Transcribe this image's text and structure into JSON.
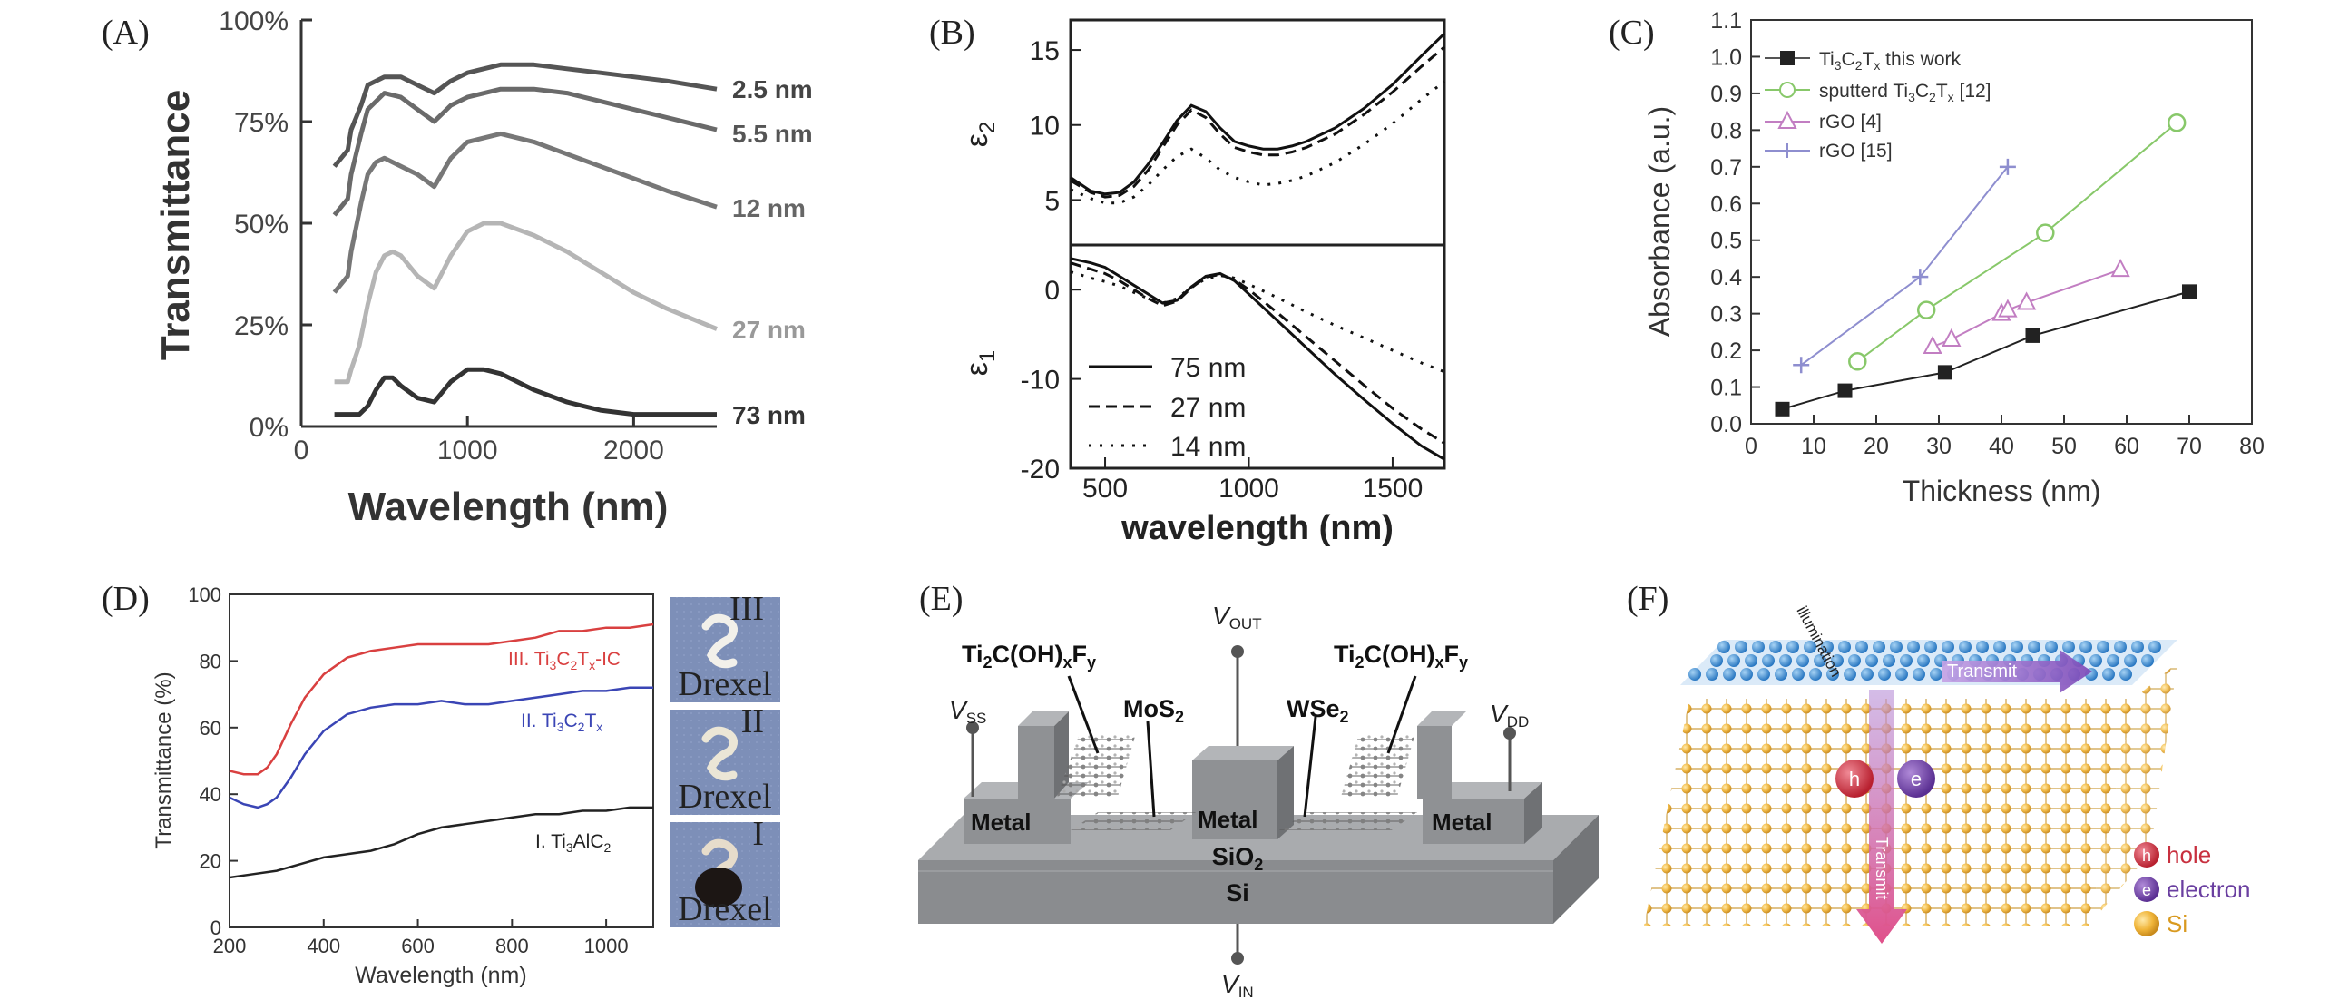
{
  "panels": {
    "A": {
      "letter": "(A)"
    },
    "B": {
      "letter": "(B)"
    },
    "C": {
      "letter": "(C)"
    },
    "D": {
      "letter": "(D)"
    },
    "E": {
      "letter": "(E)"
    },
    "F": {
      "letter": "(F)"
    }
  },
  "chart_data": [
    {
      "panel": "A",
      "type": "line",
      "xlabel": "Wavelength (nm)",
      "ylabel": "Transmittance",
      "xlim": [
        0,
        2500
      ],
      "ylim": [
        0,
        100
      ],
      "xticks": [
        "0",
        "1000",
        "2000"
      ],
      "yticks": [
        "0%",
        "25%",
        "50%",
        "75%",
        "100%"
      ],
      "series": [
        {
          "name": "2.5 nm",
          "color": "#555555",
          "x": [
            200,
            280,
            300,
            360,
            400,
            500,
            600,
            700,
            800,
            900,
            1000,
            1200,
            1400,
            1600,
            1800,
            2000,
            2200,
            2500
          ],
          "y": [
            64,
            68,
            73,
            79,
            84,
            86,
            86,
            84,
            82,
            85,
            87,
            89,
            89,
            88,
            87,
            86,
            85,
            83
          ]
        },
        {
          "name": "5.5 nm",
          "color": "#6a6a6a",
          "x": [
            200,
            280,
            300,
            360,
            400,
            500,
            600,
            700,
            800,
            900,
            1000,
            1200,
            1400,
            1600,
            1800,
            2000,
            2200,
            2500
          ],
          "y": [
            52,
            56,
            62,
            72,
            78,
            82,
            81,
            78,
            75,
            79,
            81,
            83,
            83,
            82,
            80,
            78,
            76,
            73
          ]
        },
        {
          "name": "12 nm",
          "color": "#777777",
          "x": [
            200,
            280,
            300,
            360,
            400,
            450,
            500,
            600,
            700,
            800,
            900,
            1000,
            1200,
            1400,
            1600,
            1800,
            2000,
            2200,
            2500
          ],
          "y": [
            33,
            37,
            43,
            55,
            62,
            65,
            66,
            64,
            62,
            59,
            66,
            70,
            72,
            70,
            67,
            64,
            61,
            58,
            54
          ]
        },
        {
          "name": "27 nm",
          "color": "#b5b5b5",
          "x": [
            200,
            280,
            300,
            350,
            400,
            450,
            500,
            550,
            600,
            700,
            800,
            900,
            1000,
            1100,
            1200,
            1400,
            1600,
            1800,
            2000,
            2200,
            2500
          ],
          "y": [
            11,
            11,
            14,
            20,
            30,
            38,
            42,
            43,
            42,
            37,
            34,
            42,
            48,
            50,
            50,
            47,
            43,
            38,
            33,
            29,
            24
          ]
        },
        {
          "name": "73 nm",
          "color": "#333333",
          "x": [
            200,
            300,
            350,
            400,
            450,
            500,
            550,
            600,
            700,
            800,
            900,
            1000,
            1100,
            1200,
            1400,
            1600,
            1800,
            2000,
            2200,
            2500
          ],
          "y": [
            3,
            3,
            3,
            5,
            9,
            12,
            12,
            10,
            7,
            6,
            11,
            14,
            14,
            13,
            9,
            6,
            4,
            3,
            3,
            3
          ]
        }
      ]
    },
    {
      "panel": "B-top",
      "type": "line",
      "ylabel": "ε2",
      "xlim": [
        380,
        1680
      ],
      "ylim": [
        2,
        17
      ],
      "yticks": [
        "5",
        "10",
        "15"
      ],
      "series": [
        {
          "name": "75 nm",
          "dash": "solid",
          "x": [
            380,
            450,
            500,
            550,
            600,
            650,
            700,
            750,
            800,
            850,
            900,
            950,
            1000,
            1050,
            1100,
            1150,
            1200,
            1300,
            1400,
            1500,
            1600,
            1680
          ],
          "y": [
            6.5,
            5.6,
            5.4,
            5.5,
            6.2,
            7.4,
            8.8,
            10.3,
            11.3,
            10.9,
            9.8,
            8.9,
            8.6,
            8.4,
            8.4,
            8.6,
            8.9,
            9.8,
            11.1,
            12.7,
            14.6,
            16.1
          ]
        },
        {
          "name": "27 nm",
          "dash": "dashed",
          "x": [
            380,
            450,
            500,
            550,
            600,
            650,
            700,
            750,
            800,
            850,
            900,
            950,
            1000,
            1050,
            1100,
            1150,
            1200,
            1300,
            1400,
            1500,
            1600,
            1680
          ],
          "y": [
            6.3,
            5.5,
            5.2,
            5.3,
            5.9,
            7.0,
            8.5,
            10.0,
            11.0,
            10.5,
            9.4,
            8.5,
            8.2,
            8.0,
            8.0,
            8.2,
            8.5,
            9.4,
            10.7,
            12.2,
            13.9,
            15.2
          ]
        },
        {
          "name": "14 nm",
          "dash": "dotted",
          "x": [
            380,
            450,
            500,
            550,
            600,
            650,
            700,
            750,
            800,
            850,
            900,
            950,
            1000,
            1050,
            1100,
            1150,
            1200,
            1300,
            1400,
            1500,
            1600,
            1680
          ],
          "y": [
            5.7,
            5.1,
            4.8,
            4.8,
            5.2,
            6.0,
            7.0,
            7.9,
            8.4,
            7.8,
            7.0,
            6.5,
            6.2,
            6.0,
            6.1,
            6.3,
            6.6,
            7.5,
            8.7,
            10.1,
            11.7,
            12.9
          ]
        }
      ]
    },
    {
      "panel": "B-bottom",
      "type": "line",
      "xlabel": "wavelength (nm)",
      "ylabel": "ε1",
      "xlim": [
        380,
        1680
      ],
      "ylim": [
        -20,
        5
      ],
      "xticks": [
        "500",
        "1000",
        "1500"
      ],
      "yticks": [
        "0",
        "-10",
        "-20"
      ],
      "series": [
        {
          "name": "75 nm",
          "dash": "solid",
          "x": [
            380,
            450,
            500,
            550,
            600,
            650,
            700,
            750,
            800,
            850,
            900,
            950,
            1000,
            1100,
            1200,
            1300,
            1400,
            1500,
            1600,
            1680
          ],
          "y": [
            3.5,
            3.0,
            2.5,
            1.5,
            0.5,
            -0.5,
            -1.5,
            -1.2,
            0.3,
            1.5,
            1.8,
            1.0,
            -0.5,
            -3.5,
            -6.5,
            -9.5,
            -12.3,
            -15.0,
            -17.5,
            -19.0
          ]
        },
        {
          "name": "27 nm",
          "dash": "dashed",
          "x": [
            380,
            450,
            500,
            550,
            600,
            650,
            700,
            750,
            800,
            850,
            900,
            950,
            1000,
            1100,
            1200,
            1300,
            1400,
            1500,
            1600,
            1680
          ],
          "y": [
            3.0,
            2.3,
            1.8,
            1.0,
            0.0,
            -1.0,
            -1.8,
            -1.3,
            0.2,
            1.4,
            1.7,
            1.1,
            0.0,
            -2.6,
            -5.3,
            -8.0,
            -10.7,
            -13.3,
            -15.6,
            -17.2
          ]
        },
        {
          "name": "14 nm",
          "dash": "dotted",
          "x": [
            380,
            450,
            500,
            550,
            600,
            650,
            700,
            750,
            800,
            850,
            900,
            950,
            1000,
            1100,
            1200,
            1300,
            1400,
            1500,
            1600,
            1680
          ],
          "y": [
            2.0,
            1.3,
            0.9,
            0.4,
            -0.3,
            -1.0,
            -1.5,
            -1.0,
            0.3,
            1.2,
            1.6,
            1.3,
            0.6,
            -0.9,
            -2.5,
            -4.0,
            -5.4,
            -6.8,
            -8.2,
            -9.2
          ]
        }
      ]
    },
    {
      "panel": "C",
      "type": "scatter",
      "xlabel": "Thickness (nm)",
      "ylabel": "Absorbance (a.u.)",
      "xlim": [
        0,
        80
      ],
      "ylim": [
        0,
        1.1
      ],
      "xticks": [
        "0",
        "10",
        "20",
        "30",
        "40",
        "50",
        "60",
        "70",
        "80"
      ],
      "yticks": [
        "0.0",
        "0.1",
        "0.2",
        "0.3",
        "0.4",
        "0.5",
        "0.6",
        "0.7",
        "0.8",
        "0.9",
        "1.0",
        "1.1"
      ],
      "series": [
        {
          "name": "Ti3C2Tx this work",
          "marker": "square",
          "color": "#222222",
          "x": [
            5,
            15,
            31,
            45,
            70
          ],
          "y": [
            0.04,
            0.09,
            0.14,
            0.24,
            0.36
          ]
        },
        {
          "name": "sputterd Ti3C2Tx [12]",
          "marker": "circle",
          "color": "#88c86a",
          "x": [
            17,
            28,
            47,
            68
          ],
          "y": [
            0.17,
            0.31,
            0.52,
            0.82
          ]
        },
        {
          "name": "rGO [4]",
          "marker": "triangle",
          "color": "#c27ec2",
          "x": [
            29,
            32,
            40,
            41,
            44,
            59
          ],
          "y": [
            0.21,
            0.23,
            0.3,
            0.31,
            0.33,
            0.42
          ]
        },
        {
          "name": "rGO [15]",
          "marker": "plus",
          "color": "#8e8ecf",
          "x": [
            8,
            27,
            41
          ],
          "y": [
            0.16,
            0.4,
            0.7
          ]
        }
      ]
    },
    {
      "panel": "D",
      "type": "line",
      "xlabel": "Wavelength (nm)",
      "ylabel": "Transmittance (%)",
      "xlim": [
        200,
        1100
      ],
      "ylim": [
        0,
        100
      ],
      "xticks": [
        "200",
        "400",
        "600",
        "800",
        "1000"
      ],
      "yticks": [
        "0",
        "20",
        "40",
        "60",
        "80",
        "100"
      ],
      "series": [
        {
          "name": "III. Ti3C2Tx-IC",
          "color": "#d94040",
          "x": [
            200,
            230,
            260,
            280,
            300,
            330,
            360,
            400,
            450,
            500,
            550,
            600,
            650,
            700,
            750,
            800,
            850,
            900,
            950,
            1000,
            1050,
            1100
          ],
          "y": [
            47,
            46,
            46,
            48,
            52,
            61,
            69,
            76,
            81,
            83,
            84,
            85,
            85,
            85,
            85,
            86,
            87,
            89,
            89,
            90,
            90,
            91
          ]
        },
        {
          "name": "II. Ti3C2Tx",
          "color": "#3a45b5",
          "x": [
            200,
            230,
            260,
            280,
            300,
            330,
            360,
            400,
            450,
            500,
            550,
            600,
            650,
            700,
            750,
            800,
            850,
            900,
            950,
            1000,
            1050,
            1100
          ],
          "y": [
            39,
            37,
            36,
            37,
            39,
            45,
            52,
            59,
            64,
            66,
            67,
            67,
            68,
            67,
            67,
            68,
            69,
            70,
            71,
            71,
            72,
            72
          ]
        },
        {
          "name": "I. Ti3AlC2",
          "color": "#222222",
          "x": [
            200,
            250,
            300,
            350,
            400,
            450,
            500,
            550,
            600,
            650,
            700,
            750,
            800,
            850,
            900,
            950,
            1000,
            1050,
            1100
          ],
          "y": [
            15,
            16,
            17,
            19,
            21,
            22,
            23,
            25,
            28,
            30,
            31,
            32,
            33,
            34,
            34,
            35,
            35,
            36,
            36
          ]
        }
      ]
    }
  ],
  "panelA": {
    "series_labels": [
      "2.5 nm",
      "5.5 nm",
      "12 nm",
      "27 nm",
      "73 nm"
    ]
  },
  "panelC": {
    "legend": [
      {
        "main": "Ti",
        "s1": "3",
        "mid": "C",
        "s2": "2",
        "mid2": "T",
        "s3": "x",
        "tail": " this work"
      },
      {
        "main": "sputterd Ti",
        "s1": "3",
        "mid": "C",
        "s2": "2",
        "mid2": "T",
        "s3": "x",
        "tail": " [12]"
      },
      {
        "text": "rGO [4]"
      },
      {
        "text": "rGO [15]"
      }
    ]
  },
  "panelD": {
    "series_label_III": {
      "main": "III. Ti",
      "s1": "3",
      "mid": "C",
      "s2": "2",
      "mid2": "T",
      "s3": "x",
      "tail": "-IC"
    },
    "series_label_II": {
      "main": "II. Ti",
      "s1": "3",
      "mid": "C",
      "s2": "2",
      "mid2": "T",
      "s3": "x",
      "tail": ""
    },
    "series_label_I": {
      "main": "I. Ti",
      "s1": "3",
      "mid": "AlC",
      "s2": "2"
    },
    "photos": [
      {
        "numeral": "III",
        "caption": "Drexel"
      },
      {
        "numeral": "II",
        "caption": "Drexel"
      },
      {
        "numeral": "I",
        "caption": "Drexel"
      }
    ]
  },
  "panelE": {
    "left_material": {
      "main": "Ti",
      "s1": "2",
      "mid": "C(OH)",
      "s2": "x",
      "mid2": "F",
      "s3": "y"
    },
    "right_material": {
      "main": "Ti",
      "s1": "2",
      "mid": "C(OH)",
      "s2": "x",
      "mid2": "F",
      "s3": "y"
    },
    "mos2": {
      "main": "MoS",
      "s1": "2"
    },
    "wse2": {
      "main": "WSe",
      "s1": "2"
    },
    "vout": {
      "main": "V",
      "sub": "OUT"
    },
    "vss": {
      "main": "V",
      "sub": "SS"
    },
    "vdd": {
      "main": "V",
      "sub": "DD"
    },
    "vin": {
      "main": "V",
      "sub": "IN"
    },
    "metal_left": "Metal",
    "metal_center": "Metal",
    "metal_right": "Metal",
    "sio2": {
      "main": "SiO",
      "s1": "2"
    },
    "si": "Si"
  },
  "panelF": {
    "illumination": "illumination",
    "transmit_h": "Transmit",
    "transmit_v": "Transmit",
    "h_letter": "h",
    "e_letter": "e",
    "legend": [
      {
        "symbol": "h",
        "label": "hole",
        "color": "#c8303f"
      },
      {
        "symbol": "e",
        "label": "electron",
        "color": "#6a3fa0"
      },
      {
        "symbol": "",
        "label": "Si",
        "color": "#e8b230"
      }
    ]
  }
}
